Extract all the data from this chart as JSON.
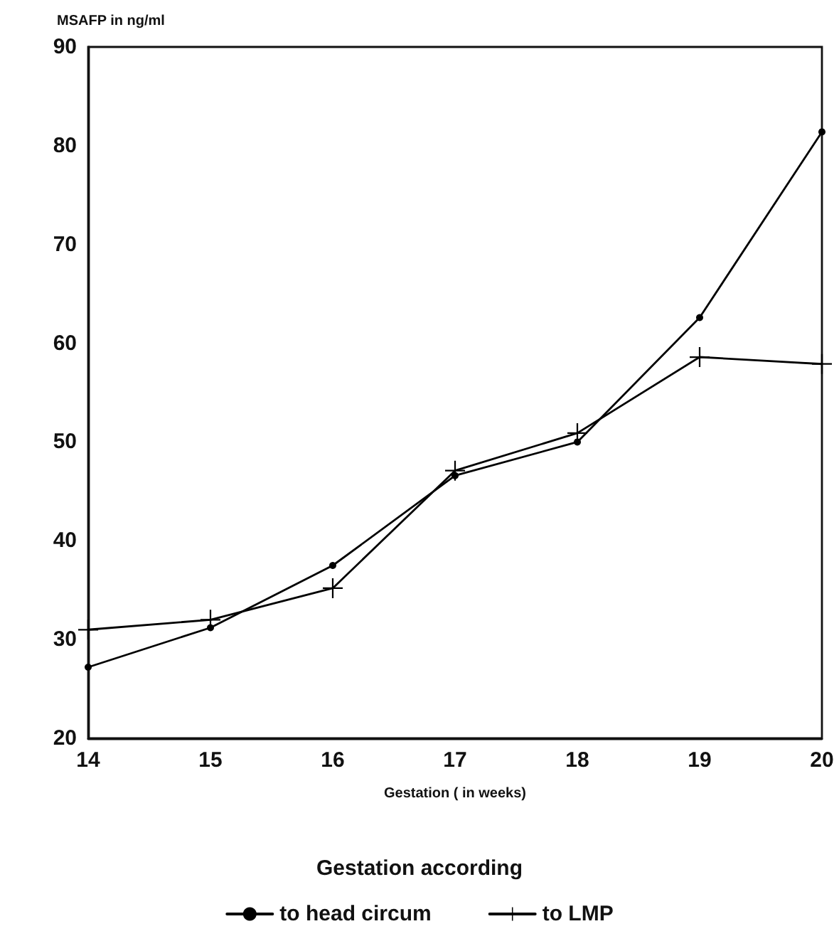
{
  "chart_data": {
    "type": "line",
    "xlabel": "Gestation ( in weeks)",
    "ylabel": "MSAFP in ng/ml",
    "legend_title": "Gestation according",
    "x": [
      14,
      15,
      16,
      17,
      18,
      19,
      20
    ],
    "series": [
      {
        "name": "to head circum",
        "color": "#000000",
        "marker": "circle",
        "values": [
          27.2,
          31.2,
          37.5,
          46.6,
          50,
          62.6,
          81.4
        ]
      },
      {
        "name": "to LMP",
        "color": "#000000",
        "marker": "cross",
        "values": [
          31,
          32,
          35.2,
          47.1,
          50.9,
          58.6,
          57.9
        ]
      }
    ],
    "xlim": [
      14,
      20
    ],
    "xticks": [
      14,
      15,
      16,
      17,
      18,
      19,
      20
    ],
    "ylim": [
      20,
      90
    ],
    "yticks": [
      20,
      30,
      40,
      50,
      60,
      70,
      80,
      90
    ],
    "grid": false,
    "legend": "bottom",
    "line_style": "solid"
  }
}
